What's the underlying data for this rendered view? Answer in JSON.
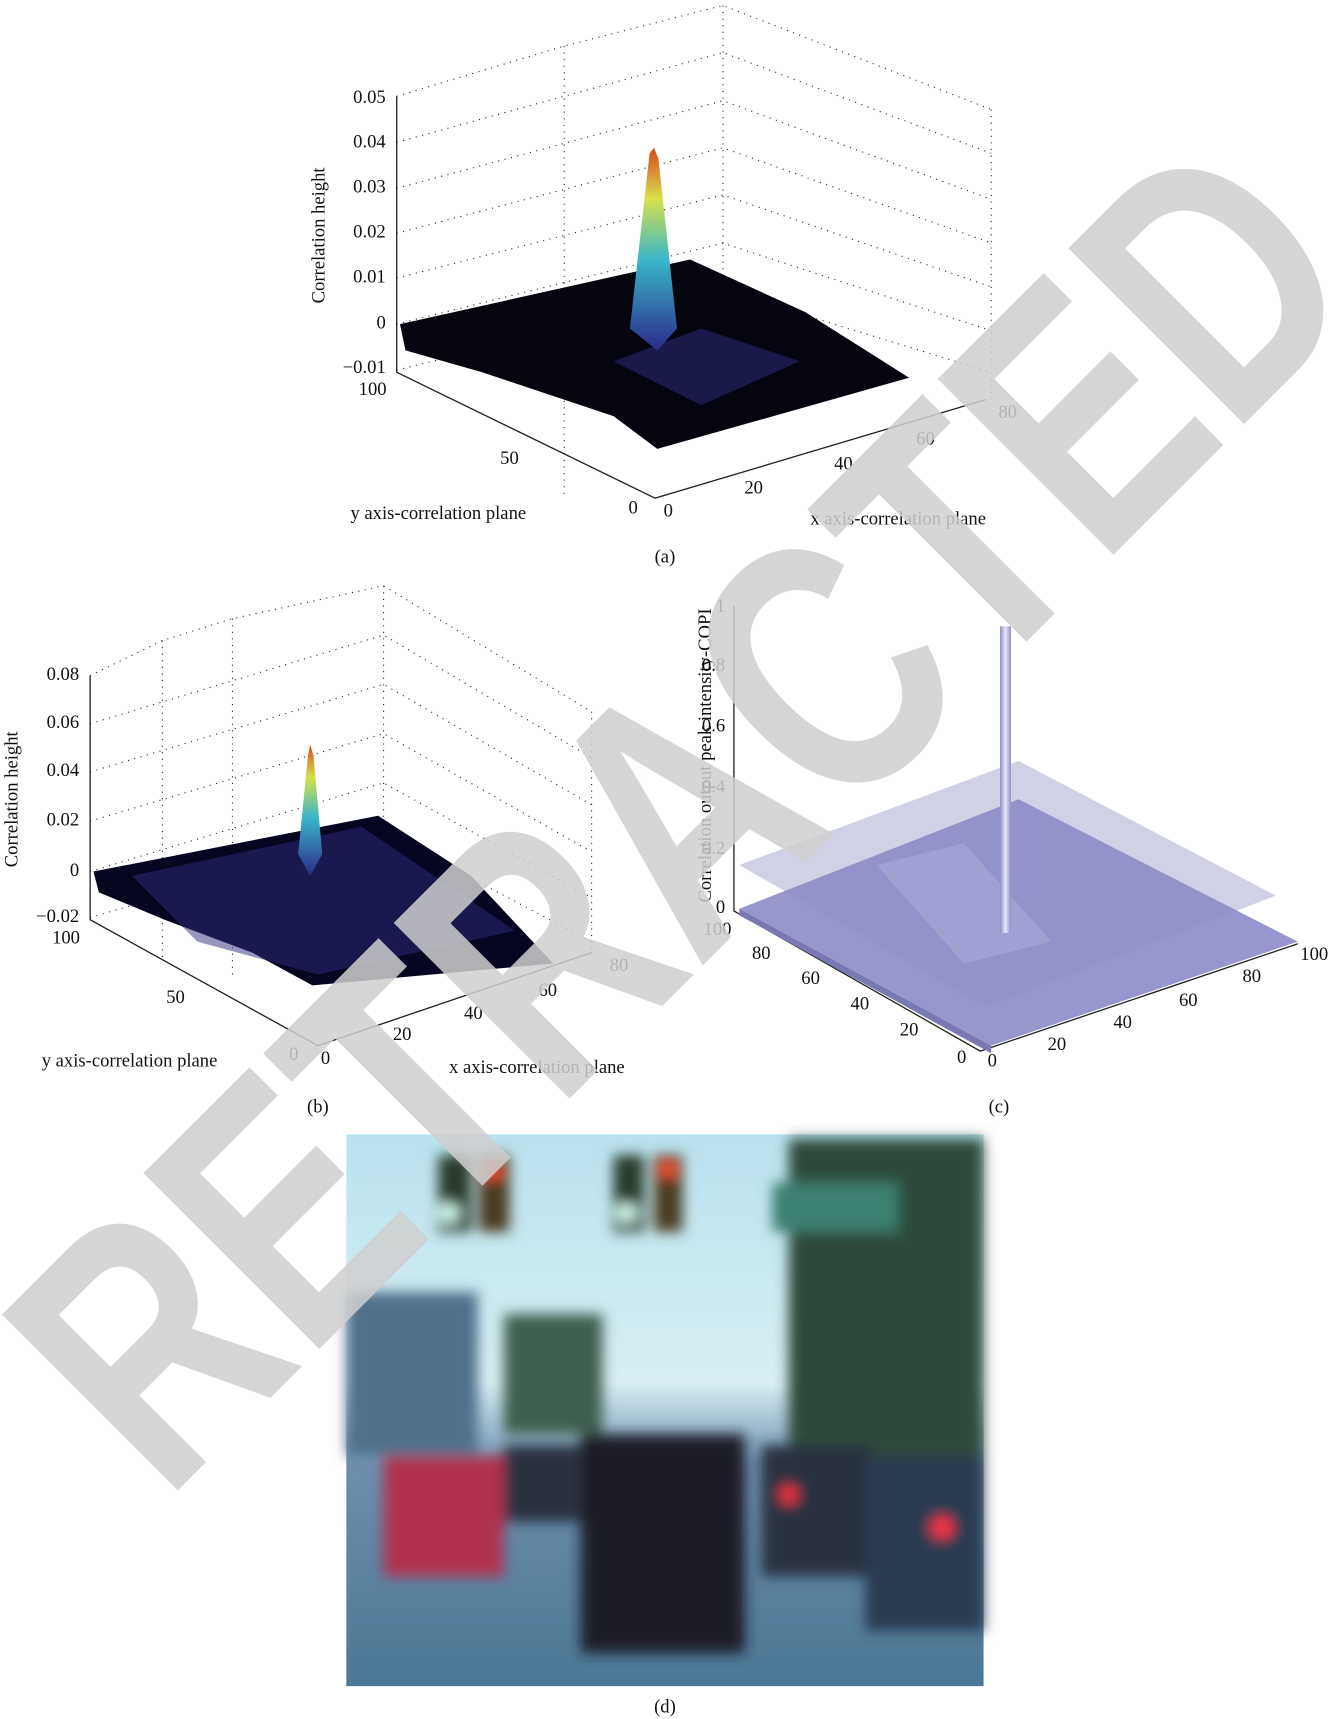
{
  "panels": [
    {
      "caption": "(a)",
      "z_axis": {
        "title": "Correlation height",
        "ticks": [
          "0.05",
          "0.04",
          "0.03",
          "0.02",
          "0.01",
          "0",
          "−0.01"
        ]
      },
      "y_axis": {
        "title": "y axis-correlation plane",
        "ticks": [
          "100",
          "50",
          "0"
        ]
      },
      "x_axis": {
        "title": "x axis-correlation plane",
        "ticks": [
          "0",
          "20",
          "40",
          "60",
          "80"
        ]
      }
    },
    {
      "caption": "(b)",
      "z_axis": {
        "title": "Correlation height",
        "ticks": [
          "0.08",
          "0.06",
          "0.04",
          "0.02",
          "0",
          "−0.02"
        ]
      },
      "y_axis": {
        "title": "y axis-correlation plane",
        "ticks": [
          "100",
          "50",
          "0"
        ]
      },
      "x_axis": {
        "title": "x axis-correlation plane",
        "ticks": [
          "0",
          "20",
          "40",
          "60",
          "80"
        ]
      }
    },
    {
      "caption": "(c)",
      "z_axis": {
        "title": "Correlation output peak intensity-COPI",
        "ticks": [
          "1",
          "0.8",
          "0.6",
          "0.4",
          "0.2",
          "0"
        ]
      },
      "y_axis": {
        "ticks": [
          "100",
          "80",
          "60",
          "40",
          "20",
          "0"
        ]
      },
      "x_axis": {
        "ticks": [
          "0",
          "20",
          "40",
          "60",
          "80",
          "100"
        ]
      }
    },
    {
      "caption": "(d)"
    }
  ],
  "watermark": "RETRACTED"
}
